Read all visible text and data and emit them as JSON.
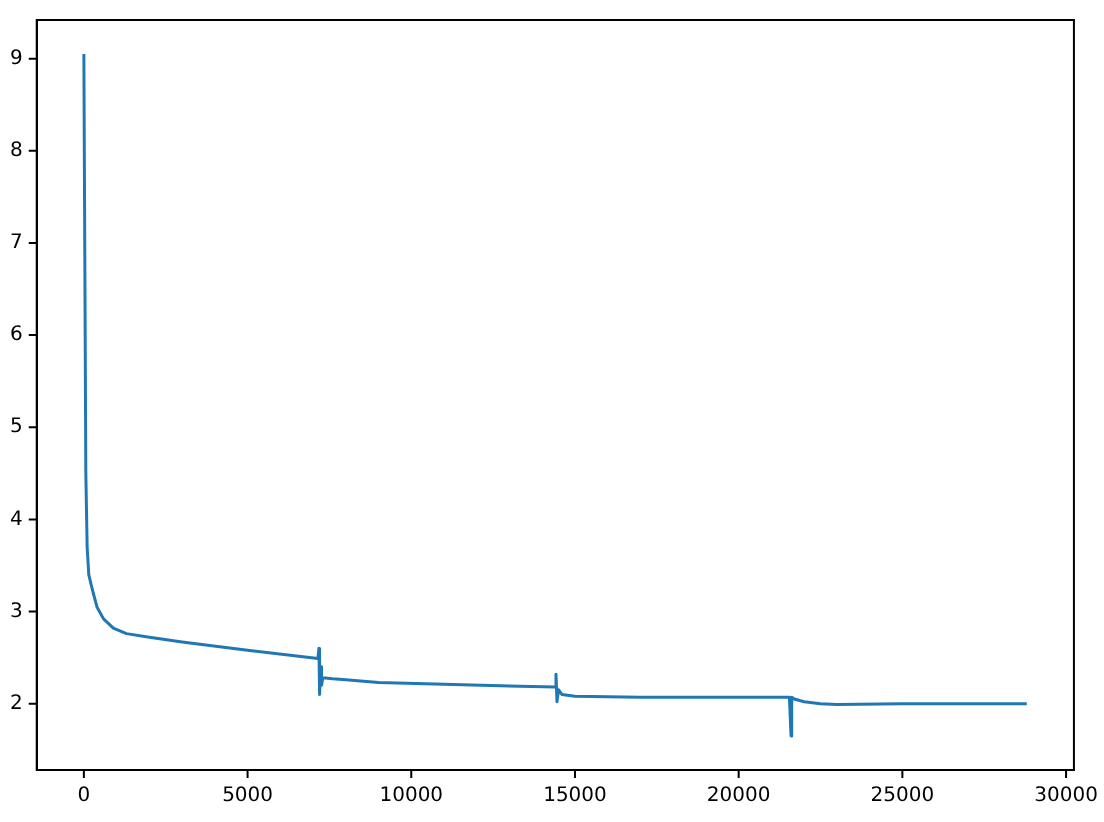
{
  "chart_data": {
    "type": "line",
    "x": [
      0,
      60,
      100,
      150,
      250,
      400,
      600,
      900,
      1300,
      2000,
      3000,
      5000,
      7150,
      7180,
      7200,
      7230,
      7260,
      7300,
      7600,
      8000,
      9000,
      11000,
      14400,
      14420,
      14450,
      14500,
      14600,
      15000,
      17000,
      21550,
      21600,
      21620,
      21700,
      22000,
      22500,
      23000,
      25000,
      28800
    ],
    "series": [
      {
        "color": "#1f77b4",
        "values": [
          9.05,
          4.5,
          3.7,
          3.4,
          3.25,
          3.05,
          2.92,
          2.82,
          2.76,
          2.72,
          2.67,
          2.58,
          2.49,
          2.6,
          2.1,
          2.4,
          2.2,
          2.28,
          2.27,
          2.26,
          2.23,
          2.21,
          2.18,
          2.32,
          2.02,
          2.15,
          2.1,
          2.08,
          2.07,
          2.07,
          1.65,
          2.07,
          2.05,
          2.02,
          2.0,
          1.99,
          2.0,
          2.0
        ]
      }
    ],
    "xlim": [
      -1440,
      30240
    ],
    "ylim": [
      1.28,
      9.42
    ],
    "xticks": [
      0,
      5000,
      10000,
      15000,
      20000,
      25000,
      30000
    ],
    "yticks": [
      2,
      3,
      4,
      5,
      6,
      7,
      8,
      9
    ],
    "grid": false,
    "legend": false
  }
}
